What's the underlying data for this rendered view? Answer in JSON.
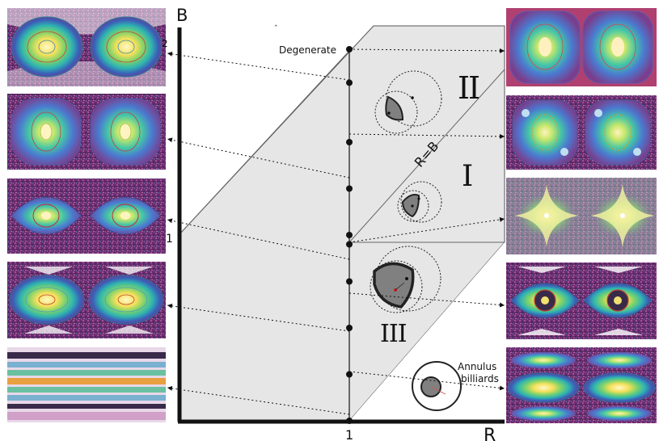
{
  "axes": {
    "y_label": "B",
    "x_label": "R",
    "y_tick_1": "1",
    "y_tick_2": "2",
    "x_tick_1": "1"
  },
  "annotations": {
    "degenerate": "Degenerate",
    "diagonal": "R=B",
    "annulus_line1": "Annulus",
    "annulus_line2": "billiards"
  },
  "regions": {
    "one": "I",
    "two": "II",
    "three": "III"
  },
  "points_B": [
    2,
    1.82,
    1.5,
    1.25,
    1.0,
    0.95,
    0.75,
    0.5,
    0.25,
    0
  ],
  "colors": {
    "region_fill": "#e6e6e6",
    "axis": "#111111",
    "table_fill": "#808080",
    "table_edge": "#222222"
  },
  "panels": {
    "left": [
      {
        "name": "panel-left-1",
        "style": "double-oval-bright"
      },
      {
        "name": "panel-left-2",
        "style": "double-oval-squared"
      },
      {
        "name": "panel-left-3",
        "style": "double-oval-lens"
      },
      {
        "name": "panel-left-4",
        "style": "double-oval-flat"
      },
      {
        "name": "panel-left-5",
        "style": "horizontal-bands"
      }
    ],
    "right": [
      {
        "name": "panel-right-1",
        "style": "double-square-smooth"
      },
      {
        "name": "panel-right-2",
        "style": "double-square-islands"
      },
      {
        "name": "panel-right-3",
        "style": "chaotic-stars"
      },
      {
        "name": "panel-right-4",
        "style": "double-oval-lens"
      },
      {
        "name": "panel-right-5",
        "style": "stacked-ovals"
      }
    ]
  }
}
